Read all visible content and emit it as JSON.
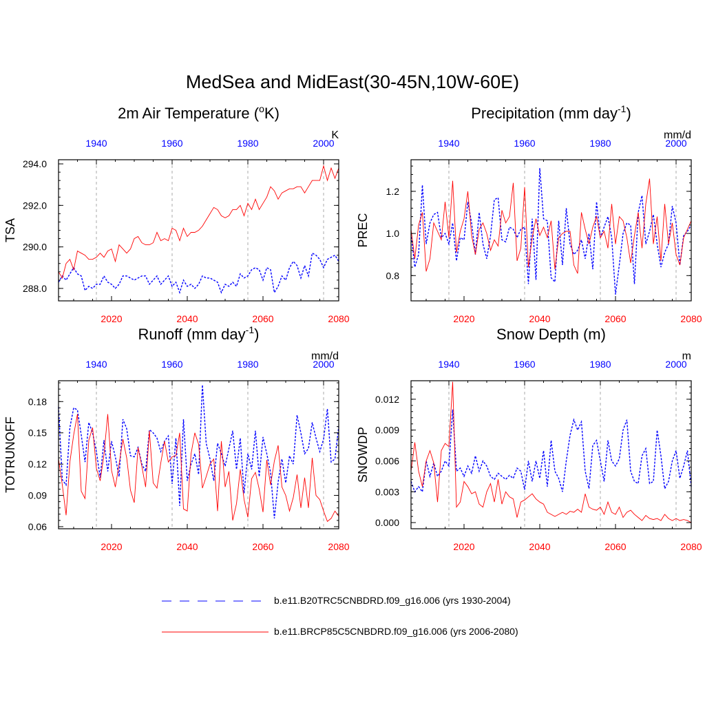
{
  "title": "MedSea and MidEast(30-45N,10W-60E)",
  "legend": {
    "entries": [
      {
        "label": "b.e11.B20TRC5CNBDRD.f09_g16.006 (yrs 1930-2004)",
        "color": "#0000ff",
        "style": "dashed"
      },
      {
        "label": "b.e11.BRCP85C5CNBDRD.f09_g16.006 (yrs 2006-2080)",
        "color": "#ff0000",
        "style": "solid"
      }
    ]
  },
  "colors": {
    "historical": "#0000ff",
    "future": "#ff0000",
    "axis": "#000000",
    "grid": "#aaaaaa"
  },
  "chart_data": [
    {
      "type": "line",
      "title": "2m Air Temperature (oK)",
      "title_main": "2m Air Temperature (",
      "title_sup": "o",
      "title_end": "K)",
      "ylabel": "TSA",
      "units": "K",
      "ylim": [
        287.4,
        294.2
      ],
      "yticks": [
        288.0,
        290.0,
        292.0,
        294.0
      ],
      "ytick_labels": [
        "288.0",
        "290.0",
        "292.0",
        "294.0"
      ],
      "x_bottom": {
        "range": [
          2006,
          2080
        ],
        "ticks": [
          2020,
          2040,
          2060,
          2080
        ],
        "tick_labels": [
          "2020",
          "2040",
          "2060",
          "2080"
        ],
        "color": "#ff0000"
      },
      "x_top": {
        "range": [
          1930,
          2004
        ],
        "ticks": [
          1940,
          1960,
          1980,
          2000
        ],
        "tick_labels": [
          "1940",
          "1960",
          "1980",
          "2000"
        ],
        "color": "#0000ff"
      },
      "series": [
        {
          "name": "b.e11.B20TRC5CNBDRD.f09_g16.006 (yrs 1930-2004)",
          "color": "#0000ff",
          "style": "dashed",
          "values": [
            288.3,
            288.6,
            288.4,
            288.7,
            289.0,
            288.7,
            288.6,
            287.9,
            288.1,
            288.0,
            288.2,
            288.2,
            288.6,
            288.3,
            288.2,
            288.0,
            288.2,
            288.6,
            288.6,
            288.5,
            288.4,
            288.5,
            288.6,
            288.6,
            288.2,
            288.4,
            288.6,
            288.2,
            288.4,
            288.6,
            288.1,
            288.3,
            287.8,
            288.4,
            288.1,
            288.2,
            288.0,
            288.2,
            288.6,
            288.5,
            288.5,
            288.4,
            288.3,
            287.8,
            288.2,
            288.1,
            288.3,
            288.1,
            288.7,
            288.5,
            288.6,
            288.9,
            289.0,
            288.9,
            288.4,
            289.0,
            288.9,
            287.8,
            288.1,
            288.6,
            288.4,
            289.0,
            289.3,
            289.1,
            288.5,
            289.1,
            288.6,
            289.7,
            289.6,
            289.4,
            289.0,
            289.4,
            289.5,
            289.6,
            289.3
          ]
        },
        {
          "name": "b.e11.BRCP85C5CNBDRD.f09_g16.006 (yrs 2006-2080)",
          "color": "#ff0000",
          "style": "solid",
          "values": [
            288.8,
            288.5,
            289.2,
            289.4,
            288.9,
            289.8,
            289.7,
            289.6,
            289.4,
            289.4,
            289.5,
            289.7,
            289.5,
            289.8,
            289.9,
            289.3,
            290.1,
            289.9,
            289.7,
            289.9,
            290.4,
            290.5,
            290.2,
            290.1,
            290.1,
            290.2,
            290.7,
            290.3,
            290.4,
            290.3,
            290.9,
            290.8,
            290.3,
            290.9,
            290.5,
            290.7,
            290.7,
            290.8,
            291.0,
            291.3,
            291.6,
            291.9,
            291.8,
            291.5,
            291.4,
            291.5,
            291.8,
            291.8,
            292.0,
            291.5,
            292.1,
            291.8,
            292.3,
            291.8,
            292.1,
            292.4,
            292.9,
            292.7,
            292.3,
            292.6,
            292.7,
            292.8,
            292.8,
            292.9,
            292.9,
            292.6,
            292.9,
            293.2,
            293.2,
            293.2,
            293.9,
            293.2,
            293.8,
            293.3,
            293.8
          ]
        }
      ]
    },
    {
      "type": "line",
      "title": "Precipitation (mm day-1)",
      "title_main": "Precipitation (mm day",
      "title_sup": "-1",
      "title_end": ")",
      "ylabel": "PREC",
      "units": "mm/d",
      "ylim": [
        0.68,
        1.35
      ],
      "yticks": [
        0.8,
        1.0,
        1.2
      ],
      "ytick_labels": [
        "0.8",
        "1.0",
        "1.2"
      ],
      "x_bottom": {
        "range": [
          2006,
          2080
        ],
        "ticks": [
          2020,
          2040,
          2060,
          2080
        ],
        "tick_labels": [
          "2020",
          "2040",
          "2060",
          "2080"
        ],
        "color": "#ff0000"
      },
      "x_top": {
        "range": [
          1930,
          2004
        ],
        "ticks": [
          1940,
          1960,
          1980,
          2000
        ],
        "tick_labels": [
          "1940",
          "1960",
          "1980",
          "2000"
        ],
        "color": "#0000ff"
      },
      "series": [
        {
          "name": "b.e11.B20TRC5CNBDRD.f09_g16.006 (yrs 1930-2004)",
          "color": "#0000ff",
          "style": "dashed",
          "values": [
            1.0,
            0.84,
            0.9,
            1.23,
            0.95,
            1.05,
            1.09,
            1.1,
            0.98,
            1.0,
            0.95,
            1.05,
            0.87,
            0.98,
            0.97,
            1.15,
            1.05,
            0.9,
            1.1,
            0.95,
            0.88,
            0.99,
            1.16,
            1.17,
            0.97,
            0.96,
            1.03,
            1.02,
            0.98,
            1.02,
            1.03,
            0.76,
            1.07,
            0.78,
            1.31,
            1.07,
            1.06,
            0.79,
            0.77,
            1.06,
            0.85,
            1.12,
            0.95,
            0.9,
            0.92,
            0.97,
            0.88,
            1.0,
            0.83,
            1.15,
            0.98,
            1.03,
            1.08,
            0.98,
            0.71,
            0.85,
            1.0,
            1.05,
            1.04,
            0.76,
            1.1,
            1.18,
            0.95,
            1.01,
            1.09,
            0.95,
            0.84,
            0.91,
            0.95,
            1.13,
            1.05,
            0.85,
            0.99,
            1.01,
            1.04
          ]
        },
        {
          "name": "b.e11.BRCP85C5CNBDRD.f09_g16.006 (yrs 2006-2080)",
          "color": "#ff0000",
          "style": "solid",
          "values": [
            1.02,
            0.88,
            1.04,
            1.1,
            0.82,
            0.88,
            1.05,
            1.01,
            0.97,
            1.15,
            0.98,
            1.25,
            0.91,
            1.01,
            1.07,
            1.2,
            0.99,
            0.9,
            1.02,
            1.05,
            1.0,
            0.92,
            0.97,
            0.94,
            1.11,
            1.05,
            1.08,
            1.24,
            0.87,
            0.93,
            1.22,
            0.84,
            0.98,
            1.07,
            0.99,
            1.03,
            0.98,
            1.06,
            0.83,
            0.98,
            1.0,
            1.01,
            1.01,
            0.85,
            0.81,
            1.1,
            1.02,
            0.95,
            1.03,
            1.08,
            0.98,
            1.01,
            0.93,
            1.14,
            0.95,
            1.08,
            1.06,
            0.98,
            0.86,
            0.99,
            1.1,
            0.93,
            1.14,
            1.26,
            0.95,
            1.08,
            0.87,
            1.14,
            0.95,
            1.05,
            0.9,
            0.85,
            0.98,
            1.02,
            1.06
          ]
        }
      ]
    },
    {
      "type": "line",
      "title": "Runoff (mm day-1)",
      "title_main": "Runoff (mm day",
      "title_sup": "-1",
      "title_end": ")",
      "ylabel": "TOTRUNOFF",
      "units": "mm/d",
      "ylim": [
        0.058,
        0.2
      ],
      "yticks": [
        0.06,
        0.09,
        0.12,
        0.15,
        0.18
      ],
      "ytick_labels": [
        "0.06",
        "0.09",
        "0.12",
        "0.15",
        "0.18"
      ],
      "x_bottom": {
        "range": [
          2006,
          2080
        ],
        "ticks": [
          2020,
          2040,
          2060,
          2080
        ],
        "tick_labels": [
          "2020",
          "2040",
          "2060",
          "2080"
        ],
        "color": "#ff0000"
      },
      "x_top": {
        "range": [
          1930,
          2004
        ],
        "ticks": [
          1940,
          1960,
          1980,
          2000
        ],
        "tick_labels": [
          "1940",
          "1960",
          "1980",
          "2000"
        ],
        "color": "#0000ff"
      },
      "series": [
        {
          "name": "b.e11.B20TRC5CNBDRD.f09_g16.006 (yrs 1930-2004)",
          "color": "#0000ff",
          "style": "dashed",
          "values": [
            0.175,
            0.105,
            0.1,
            0.155,
            0.174,
            0.172,
            0.148,
            0.122,
            0.16,
            0.15,
            0.132,
            0.107,
            0.143,
            0.113,
            0.142,
            0.127,
            0.108,
            0.163,
            0.154,
            0.128,
            0.127,
            0.136,
            0.12,
            0.113,
            0.153,
            0.15,
            0.145,
            0.132,
            0.142,
            0.147,
            0.101,
            0.145,
            0.08,
            0.163,
            0.104,
            0.12,
            0.13,
            0.11,
            0.196,
            0.14,
            0.125,
            0.104,
            0.14,
            0.13,
            0.118,
            0.135,
            0.152,
            0.115,
            0.145,
            0.092,
            0.13,
            0.115,
            0.152,
            0.108,
            0.146,
            0.13,
            0.112,
            0.068,
            0.103,
            0.125,
            0.102,
            0.128,
            0.12,
            0.167,
            0.15,
            0.13,
            0.135,
            0.16,
            0.145,
            0.132,
            0.144,
            0.173,
            0.122,
            0.125,
            0.156
          ]
        },
        {
          "name": "b.e11.BRCP85C5CNBDRD.f09_g16.006 (yrs 2006-2080)",
          "color": "#ff0000",
          "style": "solid",
          "values": [
            0.125,
            0.1,
            0.071,
            0.122,
            0.148,
            0.168,
            0.094,
            0.087,
            0.143,
            0.155,
            0.116,
            0.104,
            0.129,
            0.168,
            0.114,
            0.098,
            0.12,
            0.144,
            0.126,
            0.095,
            0.083,
            0.136,
            0.118,
            0.098,
            0.152,
            0.102,
            0.097,
            0.121,
            0.142,
            0.122,
            0.127,
            0.128,
            0.15,
            0.077,
            0.075,
            0.13,
            0.15,
            0.139,
            0.097,
            0.108,
            0.12,
            0.125,
            0.075,
            0.142,
            0.098,
            0.113,
            0.066,
            0.082,
            0.115,
            0.086,
            0.069,
            0.106,
            0.112,
            0.096,
            0.074,
            0.124,
            0.1,
            0.123,
            0.138,
            0.098,
            0.09,
            0.075,
            0.088,
            0.11,
            0.078,
            0.107,
            0.078,
            0.126,
            0.09,
            0.086,
            0.075,
            0.065,
            0.068,
            0.075,
            0.07
          ]
        }
      ]
    },
    {
      "type": "line",
      "title": "Snow Depth (m)",
      "title_main": "Snow Depth (m)",
      "title_sup": "",
      "title_end": "",
      "ylabel": "SNOWDP",
      "units": "m",
      "ylim": [
        -0.0006,
        0.0138
      ],
      "yticks": [
        0.0,
        0.003,
        0.006,
        0.009,
        0.012
      ],
      "ytick_labels": [
        "0.000",
        "0.003",
        "0.006",
        "0.009",
        "0.012"
      ],
      "x_bottom": {
        "range": [
          2006,
          2080
        ],
        "ticks": [
          2020,
          2040,
          2060,
          2080
        ],
        "tick_labels": [
          "2020",
          "2040",
          "2060",
          "2080"
        ],
        "color": "#ff0000"
      },
      "x_top": {
        "range": [
          1930,
          2004
        ],
        "ticks": [
          1940,
          1960,
          1980,
          2000
        ],
        "tick_labels": [
          "1940",
          "1960",
          "1980",
          "2000"
        ],
        "color": "#0000ff"
      },
      "series": [
        {
          "name": "b.e11.B20TRC5CNBDRD.f09_g16.006 (yrs 1930-2004)",
          "color": "#0000ff",
          "style": "dashed",
          "values": [
            0.004,
            0.003,
            0.0035,
            0.003,
            0.006,
            0.0045,
            0.0058,
            0.0045,
            0.005,
            0.006,
            0.0055,
            0.011,
            0.005,
            0.0053,
            0.0045,
            0.0055,
            0.0048,
            0.0065,
            0.005,
            0.006,
            0.0055,
            0.0045,
            0.0042,
            0.0048,
            0.0045,
            0.0042,
            0.0046,
            0.0043,
            0.0053,
            0.005,
            0.0032,
            0.006,
            0.004,
            0.006,
            0.0043,
            0.007,
            0.0035,
            0.008,
            0.005,
            0.0043,
            0.003,
            0.006,
            0.0085,
            0.01,
            0.009,
            0.0098,
            0.005,
            0.0033,
            0.0075,
            0.008,
            0.006,
            0.004,
            0.008,
            0.006,
            0.0055,
            0.0062,
            0.009,
            0.01,
            0.005,
            0.004,
            0.0038,
            0.0065,
            0.0072,
            0.0038,
            0.004,
            0.009,
            0.0065,
            0.0033,
            0.004,
            0.006,
            0.007,
            0.0043,
            0.0055,
            0.007,
            0.0035
          ]
        },
        {
          "name": "b.e11.BRCP85C5CNBDRD.f09_g16.006 (yrs 2006-2080)",
          "color": "#ff0000",
          "style": "solid",
          "values": [
            0.005,
            0.0078,
            0.005,
            0.0035,
            0.006,
            0.007,
            0.0058,
            0.002,
            0.007,
            0.0077,
            0.0074,
            0.0137,
            0.0015,
            0.002,
            0.004,
            0.0035,
            0.0028,
            0.003,
            0.0018,
            0.0015,
            0.003,
            0.0038,
            0.002,
            0.0042,
            0.0018,
            0.003,
            0.0025,
            0.0023,
            0.0005,
            0.002,
            0.0022,
            0.0025,
            0.0028,
            0.0023,
            0.002,
            0.0018,
            0.001,
            0.0008,
            0.0006,
            0.0008,
            0.001,
            0.0008,
            0.0011,
            0.001,
            0.0013,
            0.001,
            0.0028,
            0.0015,
            0.0013,
            0.0012,
            0.0015,
            0.0008,
            0.002,
            0.001,
            0.0008,
            0.0015,
            0.0005,
            0.001,
            0.0012,
            0.0008,
            0.0005,
            0.0002,
            0.0007,
            0.0004,
            0.0003,
            0.0004,
            0.0002,
            0.0008,
            0.0004,
            0.0002,
            0.0004,
            0.0002,
            0.0003,
            0.0002,
            0.0
          ]
        }
      ]
    }
  ]
}
